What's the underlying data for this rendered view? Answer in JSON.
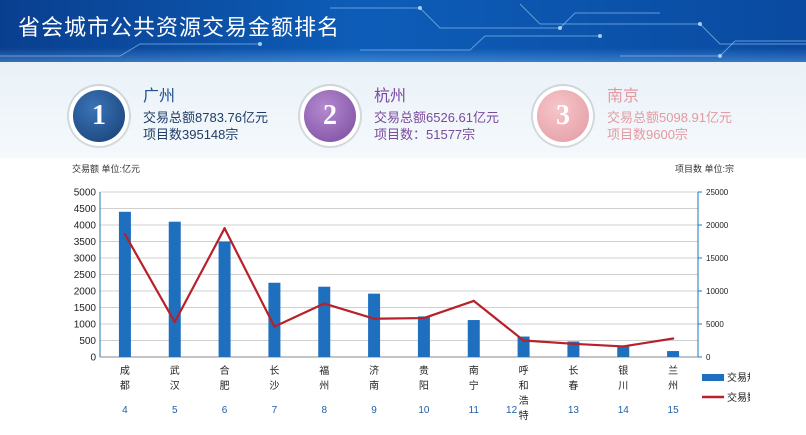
{
  "header": {
    "title": "省会城市公共资源交易金额排名"
  },
  "top3": [
    {
      "rank": "1",
      "city": "广州",
      "line1": "交易总额8783.76亿元",
      "line2": "项目数395148宗",
      "color": "#1e4f8c",
      "text_color": "#1f3d66",
      "city_color": "#1e4f8c"
    },
    {
      "rank": "2",
      "city": "杭州",
      "line1": "交易总额6526.61亿元",
      "line2": "项目数：51577宗",
      "color": "#8e5fb0",
      "text_color": "#7a4a9e",
      "city_color": "#7a4a9e"
    },
    {
      "rank": "3",
      "city": "南京",
      "line1": "交易总额5098.91亿元",
      "line2": "项目数9600宗",
      "color": "#e8a0a6",
      "text_color": "#e39aa2",
      "city_color": "#e39aa2"
    }
  ],
  "chart_data": {
    "type": "bar",
    "left_axis_label": "交易额   单位:亿元",
    "right_axis_label": "项目数 单位:宗",
    "categories": [
      "成都",
      "武汉",
      "合肥",
      "长沙",
      "福州",
      "济南",
      "贵阳",
      "南宁",
      "呼和浩特",
      "长春",
      "银川",
      "兰州"
    ],
    "rank_numbers": [
      "4",
      "5",
      "6",
      "7",
      "8",
      "9",
      "10",
      "11",
      "12",
      "13",
      "14",
      "15"
    ],
    "yticks_left": [
      "5000",
      "4500",
      "4000",
      "3500",
      "3000",
      "2500",
      "2000",
      "1500",
      "1000",
      "500",
      "0"
    ],
    "yticks_right": [
      "25000",
      "20000",
      "15000",
      "10000",
      "5000",
      "0"
    ],
    "ylim_left": [
      0,
      5000
    ],
    "ylim_right": [
      0,
      25000
    ],
    "series": [
      {
        "name": "交易规模",
        "kind": "bar",
        "axis": "left",
        "color": "#1f6fbf",
        "values": [
          4400,
          4100,
          3500,
          2250,
          2130,
          1920,
          1230,
          1120,
          620,
          470,
          340,
          180
        ]
      },
      {
        "name": "交易数量",
        "kind": "line",
        "axis": "right",
        "color": "#b8202a",
        "values": [
          18600,
          5300,
          19500,
          4600,
          8100,
          5800,
          5900,
          8500,
          2500,
          2000,
          1600,
          2800
        ]
      }
    ],
    "legend_position": "right",
    "grid": true
  }
}
